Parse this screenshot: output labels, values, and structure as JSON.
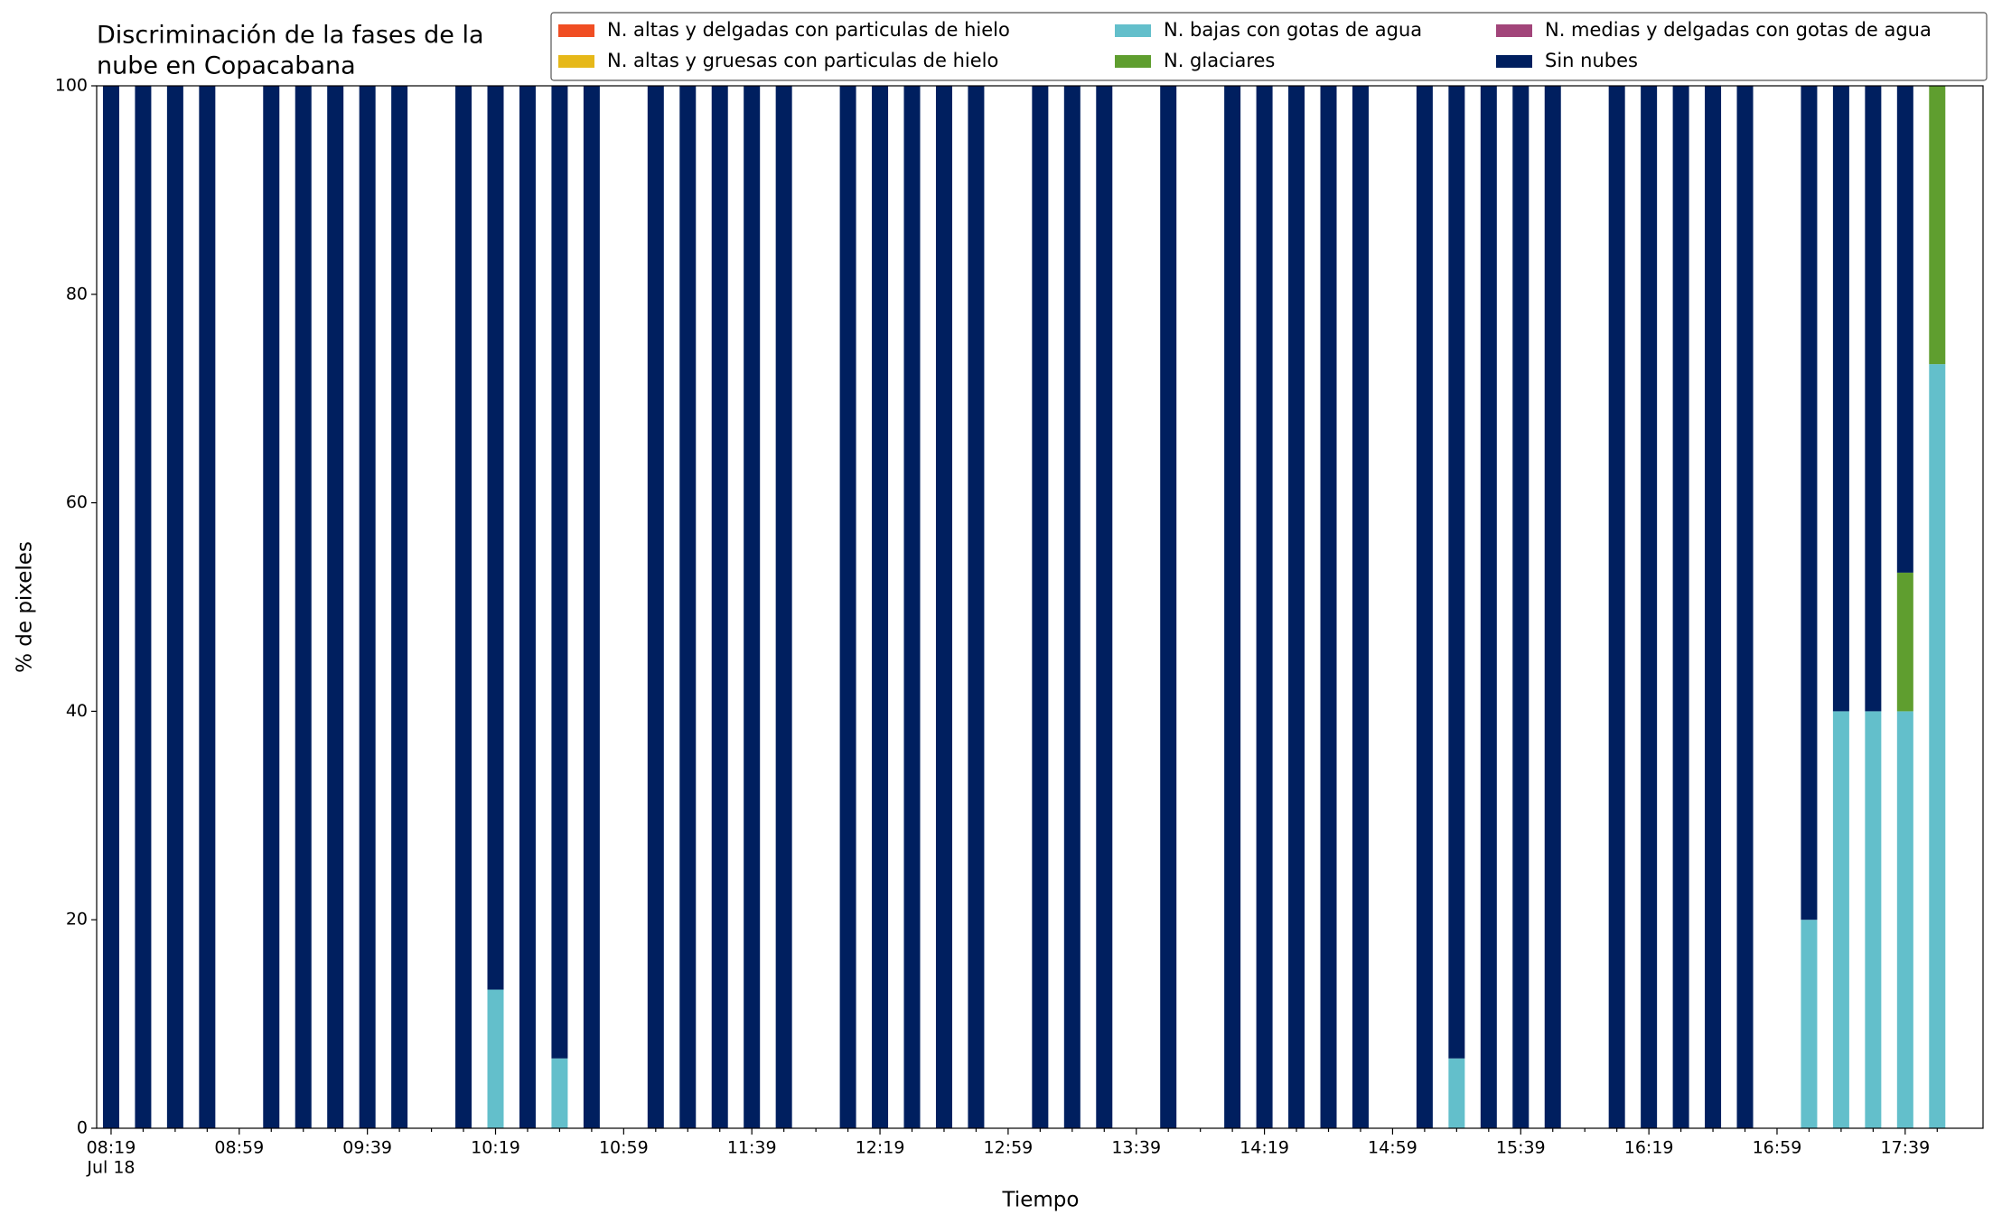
{
  "chart_data": {
    "type": "stacked_bar",
    "title": [
      "Discriminación de la fases de la",
      "nube en Copacabana"
    ],
    "xlabel": "Tiempo",
    "ylabel": "% de pixeles",
    "x_sublabel": "Jul 18",
    "legend_loc": "upper right",
    "categories": [
      "08:19",
      null,
      null,
      null,
      "08:59",
      null,
      null,
      null,
      "09:39",
      null,
      null,
      null,
      "10:19",
      null,
      null,
      null,
      "10:59",
      null,
      null,
      null,
      "11:39",
      null,
      null,
      null,
      "12:19",
      null,
      null,
      null,
      "12:59",
      null,
      null,
      null,
      "13:39",
      null,
      null,
      null,
      "14:19",
      null,
      null,
      null,
      "14:59",
      null,
      null,
      null,
      "15:39",
      null,
      null,
      null,
      "16:19",
      null,
      null,
      null,
      "16:59",
      null,
      null,
      null,
      "17:39",
      null
    ],
    "ylim": [
      0,
      100
    ],
    "yticks": [
      0,
      20,
      40,
      60,
      80,
      100
    ],
    "series": [
      {
        "name": "N. altas y delgadas con particulas de hielo",
        "color": "#f04e23",
        "values": [
          0,
          0,
          0,
          0,
          null,
          0,
          0,
          0,
          0,
          0,
          null,
          0,
          0,
          0,
          0,
          0,
          null,
          0,
          0,
          0,
          0,
          0,
          null,
          0,
          0,
          0,
          0,
          0,
          null,
          0,
          0,
          0,
          null,
          0,
          null,
          0,
          0,
          0,
          0,
          0,
          null,
          0,
          0,
          0,
          0,
          0,
          null,
          0,
          0,
          0,
          0,
          0,
          null,
          0,
          0,
          0,
          0,
          0
        ]
      },
      {
        "name": "N. altas y gruesas con particulas de hielo",
        "color": "#e6b819",
        "values": [
          0,
          0,
          0,
          0,
          null,
          0,
          0,
          0,
          0,
          0,
          null,
          0,
          0,
          0,
          0,
          0,
          null,
          0,
          0,
          0,
          0,
          0,
          null,
          0,
          0,
          0,
          0,
          0,
          null,
          0,
          0,
          0,
          null,
          0,
          null,
          0,
          0,
          0,
          0,
          0,
          null,
          0,
          0,
          0,
          0,
          0,
          null,
          0,
          0,
          0,
          0,
          0,
          null,
          0,
          0,
          0,
          0,
          0
        ]
      },
      {
        "name": "N. bajas con gotas de agua",
        "color": "#63bfcb",
        "values": [
          0,
          0,
          0,
          0,
          null,
          0,
          0,
          0,
          0,
          0,
          null,
          0,
          13.3,
          0,
          6.7,
          0,
          null,
          0,
          0,
          0,
          0,
          0,
          null,
          0,
          0,
          0,
          0,
          0,
          null,
          0,
          0,
          0,
          null,
          0,
          null,
          0,
          0,
          0,
          0,
          0,
          null,
          0,
          6.7,
          0,
          0,
          0,
          null,
          0,
          0,
          0,
          0,
          0,
          null,
          20,
          40,
          40,
          40,
          73.3
        ]
      },
      {
        "name": "N. glaciares",
        "color": "#5f9e2f",
        "values": [
          0,
          0,
          0,
          0,
          null,
          0,
          0,
          0,
          0,
          0,
          null,
          0,
          0,
          0,
          0,
          0,
          null,
          0,
          0,
          0,
          0,
          0,
          null,
          0,
          0,
          0,
          0,
          0,
          null,
          0,
          0,
          0,
          null,
          0,
          null,
          0,
          0,
          0,
          0,
          0,
          null,
          0,
          0,
          0,
          0,
          0,
          null,
          0,
          0,
          0,
          0,
          0,
          null,
          0,
          0,
          0,
          13.3,
          26.7
        ]
      },
      {
        "name": "N. medias y delgadas con gotas de agua",
        "color": "#a2457a",
        "values": [
          0,
          0,
          0,
          0,
          null,
          0,
          0,
          0,
          0,
          0,
          null,
          0,
          0,
          0,
          0,
          0,
          null,
          0,
          0,
          0,
          0,
          0,
          null,
          0,
          0,
          0,
          0,
          0,
          null,
          0,
          0,
          0,
          null,
          0,
          null,
          0,
          0,
          0,
          0,
          0,
          null,
          0,
          0,
          0,
          0,
          0,
          null,
          0,
          0,
          0,
          0,
          0,
          null,
          0,
          0,
          0,
          0,
          0
        ]
      },
      {
        "name": "Sin nubes",
        "color": "#001f5f",
        "values": [
          100,
          100,
          100,
          100,
          null,
          100,
          100,
          100,
          100,
          100,
          null,
          100,
          86.7,
          100,
          93.3,
          100,
          null,
          100,
          100,
          100,
          100,
          100,
          null,
          100,
          100,
          100,
          100,
          100,
          null,
          100,
          100,
          100,
          null,
          100,
          null,
          100,
          100,
          100,
          100,
          100,
          null,
          100,
          93.3,
          100,
          100,
          100,
          null,
          100,
          100,
          100,
          100,
          100,
          null,
          80,
          60,
          60,
          46.7,
          0
        ]
      }
    ]
  }
}
